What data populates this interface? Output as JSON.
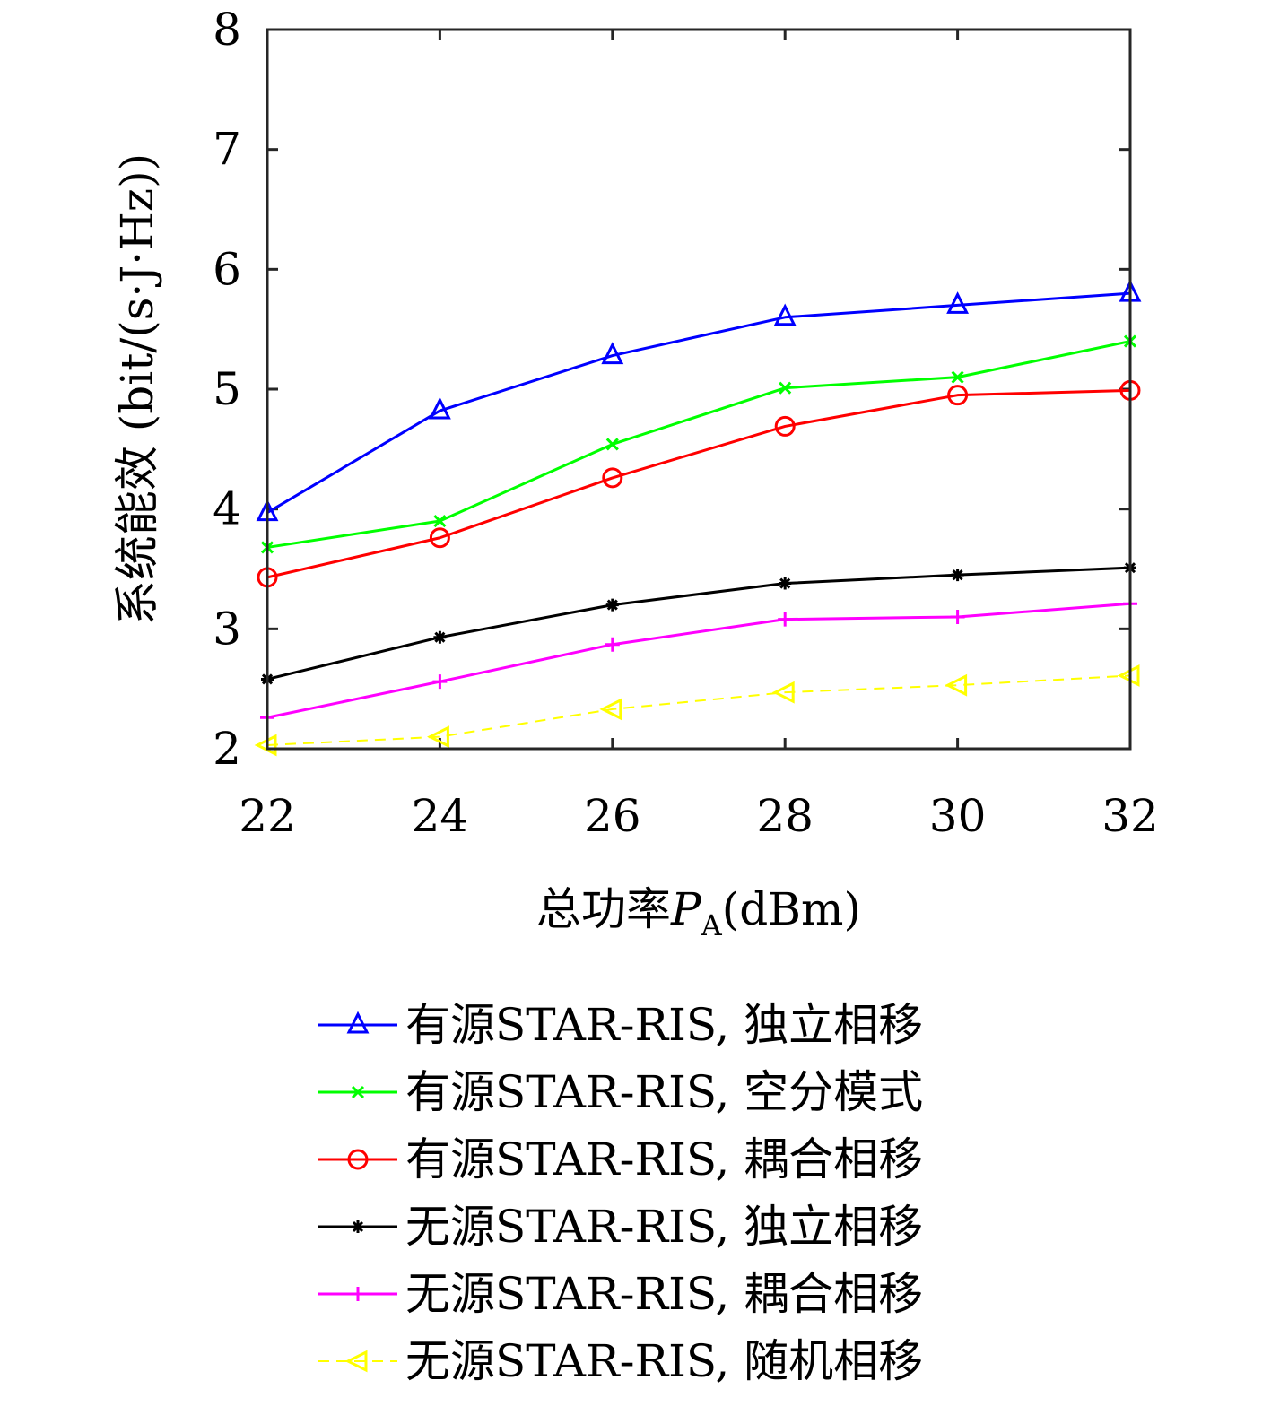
{
  "chart_data": {
    "type": "line",
    "x": [
      22,
      24,
      26,
      28,
      30,
      32
    ],
    "xlim": [
      22,
      32
    ],
    "ylim": [
      2,
      8
    ],
    "xticks": [
      "22",
      "24",
      "26",
      "28",
      "30",
      "32"
    ],
    "yticks": [
      "2",
      "3",
      "4",
      "5",
      "6",
      "7",
      "8"
    ],
    "xlabel_prefix": "总功率",
    "xlabel_var": "P",
    "xlabel_sub": "A",
    "xlabel_unit": "(dBm)",
    "ylabel": "系统能效 (bit/(s·J·Hz))",
    "grid": false,
    "legend_position": "below",
    "series": [
      {
        "name": "有源STAR-RIS, 独立相移",
        "color": "#0000ff",
        "marker": "triangle-up",
        "dash": "solid",
        "values": [
          3.97,
          4.82,
          5.28,
          5.6,
          5.7,
          5.8
        ]
      },
      {
        "name": "有源STAR-RIS, 空分模式",
        "color": "#00ff00",
        "marker": "x",
        "dash": "solid",
        "values": [
          3.68,
          3.9,
          4.54,
          5.01,
          5.1,
          5.4
        ]
      },
      {
        "name": "有源STAR-RIS, 耦合相移",
        "color": "#ff0000",
        "marker": "circle",
        "dash": "solid",
        "values": [
          3.43,
          3.76,
          4.26,
          4.69,
          4.95,
          4.99
        ]
      },
      {
        "name": "无源STAR-RIS, 独立相移",
        "color": "#000000",
        "marker": "asterisk",
        "dash": "solid",
        "values": [
          2.58,
          2.93,
          3.2,
          3.38,
          3.45,
          3.51
        ]
      },
      {
        "name": "无源STAR-RIS, 耦合相移",
        "color": "#ff00ff",
        "marker": "plus",
        "dash": "solid",
        "values": [
          2.26,
          2.56,
          2.87,
          3.08,
          3.1,
          3.21
        ]
      },
      {
        "name": "无源STAR-RIS, 随机相移",
        "color": "#ffff00",
        "marker": "triangle-left",
        "dash": "dashed",
        "values": [
          2.03,
          2.1,
          2.33,
          2.47,
          2.53,
          2.61
        ]
      }
    ]
  }
}
